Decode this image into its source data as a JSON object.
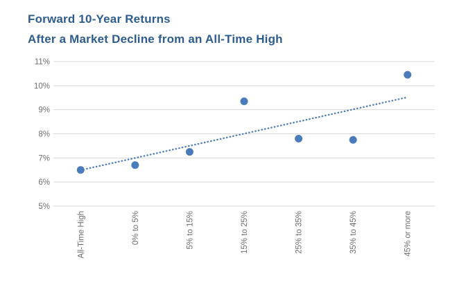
{
  "header": {
    "title_line1": "Forward 10-Year Returns",
    "title_line2": "After a Market Decline from an All-Time High"
  },
  "chart_data": {
    "type": "scatter",
    "title": "Forward 10-Year Returns",
    "subtitle": "After a Market Decline from an All-Time High",
    "categories": [
      "All-Time High",
      "0% to 5%",
      "5% to 15%",
      "15% to 25%",
      "25% to 35%",
      "35% to 45%",
      "45% or more"
    ],
    "values": [
      6.5,
      6.7,
      7.25,
      9.35,
      7.8,
      7.75,
      10.45
    ],
    "unit": "%",
    "xlabel": "",
    "ylabel": "",
    "ylim": [
      5,
      11
    ],
    "y_ticks": [
      "5%",
      "6%",
      "7%",
      "8%",
      "9%",
      "10%",
      "11%"
    ],
    "grid": true,
    "legend": "none",
    "trendline": {
      "style": "dotted",
      "start_value": 6.55,
      "end_value": 9.5
    },
    "colors": {
      "point": "#4a7bba",
      "trend": "#4a7bba",
      "title": "#2e5c8f",
      "axis_label": "#6f6f6f",
      "gridline": "#d8d8d8"
    }
  }
}
